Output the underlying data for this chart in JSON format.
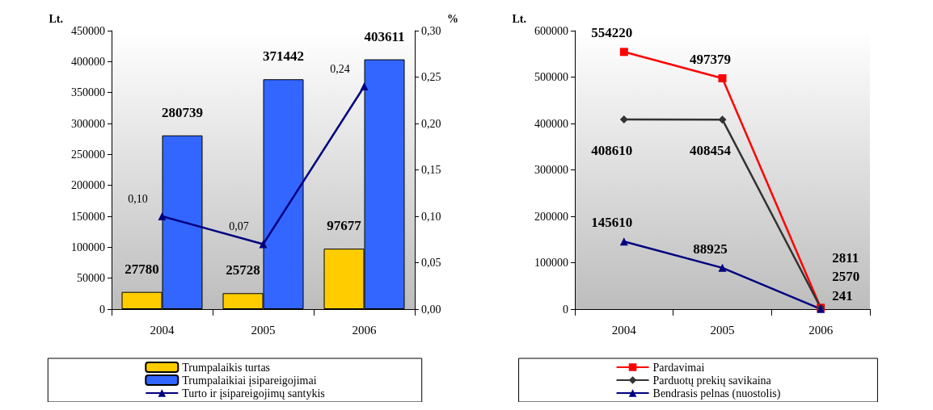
{
  "chart_data": [
    {
      "type": "bar",
      "ylabel": "Lt.",
      "y2label": "%",
      "categories": [
        "2004",
        "2005",
        "2006"
      ],
      "series": [
        {
          "name": "Trumpalaikis turtas",
          "color": "#ffcc00",
          "values": [
            27780,
            25728,
            97677
          ]
        },
        {
          "name": "Trumpalaikiai įsipareigojimai",
          "color": "#3366ff",
          "values": [
            280739,
            371442,
            403611
          ]
        },
        {
          "name": "Turto ir įsipareigojimų santykis",
          "type": "line",
          "axis": "y2",
          "color": "#000080",
          "marker": "triangle",
          "values": [
            0.1,
            0.07,
            0.24
          ],
          "value_labels": [
            "0,10",
            "0,07",
            "0,24"
          ]
        }
      ],
      "ylim": [
        0,
        450000
      ],
      "yticks": [
        0,
        50000,
        100000,
        150000,
        200000,
        250000,
        300000,
        350000,
        400000,
        450000
      ],
      "y2lim": [
        0,
        0.3
      ],
      "y2ticks": [
        {
          "value": 0,
          "label": "0,00"
        },
        {
          "value": 0.05,
          "label": "0,05"
        },
        {
          "value": 0.1,
          "label": "0,10"
        },
        {
          "value": 0.15,
          "label": "0,15"
        },
        {
          "value": 0.2,
          "label": "0,20"
        },
        {
          "value": 0.25,
          "label": "0,25"
        },
        {
          "value": 0.3,
          "label": "0,30"
        }
      ],
      "data_labels": true,
      "grid": false,
      "legend": "bottom"
    },
    {
      "type": "line",
      "ylabel": "Lt.",
      "categories": [
        "2004",
        "2005",
        "2006"
      ],
      "series": [
        {
          "name": "Pardavimai",
          "color": "#ff0000",
          "marker": "square",
          "values": [
            554220,
            497379,
            2811
          ]
        },
        {
          "name": "Parduotų prekių savikaina",
          "color": "#333333",
          "marker": "diamond",
          "values": [
            408610,
            408454,
            2570
          ]
        },
        {
          "name": "Bendrasis pelnas (nuostolis)",
          "color": "#000080",
          "marker": "triangle",
          "values": [
            145610,
            88925,
            241
          ]
        }
      ],
      "ylim": [
        0,
        600000
      ],
      "yticks": [
        0,
        100000,
        200000,
        300000,
        400000,
        500000,
        600000
      ],
      "data_labels": true,
      "grid": false,
      "legend": "bottom"
    }
  ]
}
